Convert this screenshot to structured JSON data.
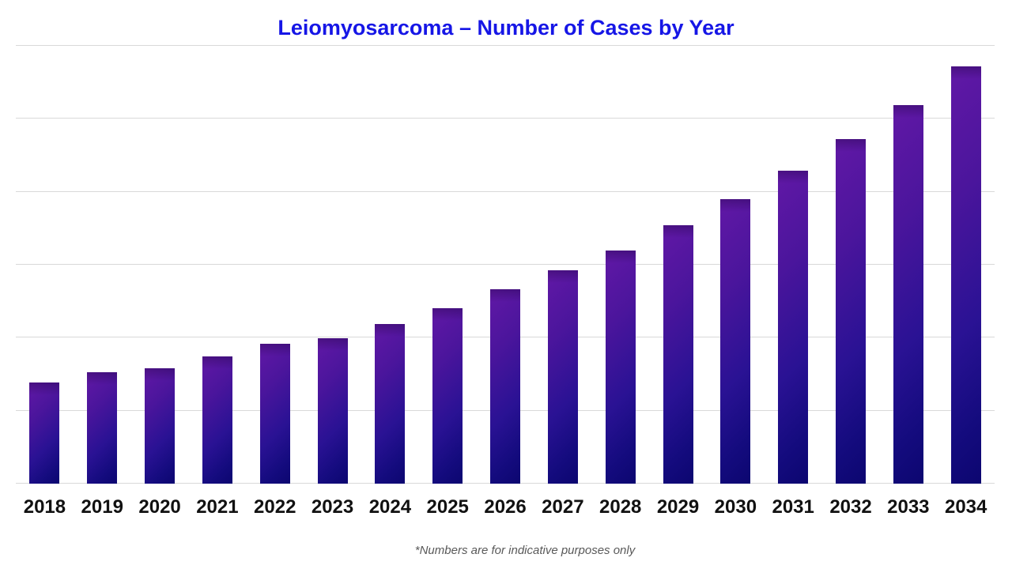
{
  "chart_data": {
    "type": "bar",
    "title": "Leiomyosarcoma – Number of Cases by Year",
    "title_color": "#1616E6",
    "categories": [
      "2018",
      "2019",
      "2020",
      "2021",
      "2022",
      "2023",
      "2024",
      "2025",
      "2026",
      "2027",
      "2028",
      "2029",
      "2030",
      "2031",
      "2032",
      "2033",
      "2034"
    ],
    "values": [
      139,
      153,
      158,
      174,
      192,
      199,
      219,
      240,
      266,
      292,
      320,
      354,
      390,
      429,
      472,
      519,
      572
    ],
    "series_name": "Number of Cases",
    "xlabel": "",
    "ylabel": "",
    "ylim": [
      0,
      600
    ],
    "gridline_step": 100,
    "gridline_color": "#d9d9d9",
    "y_tick_labels": "none",
    "legend": "none",
    "grid": "horizontal",
    "bar_gradient_from": "#6118A6",
    "bar_gradient_to": "#0C0670",
    "footnote": "*Numbers are for indicative purposes only",
    "footnote_color": "#595959",
    "x_label_color": "#111111"
  }
}
